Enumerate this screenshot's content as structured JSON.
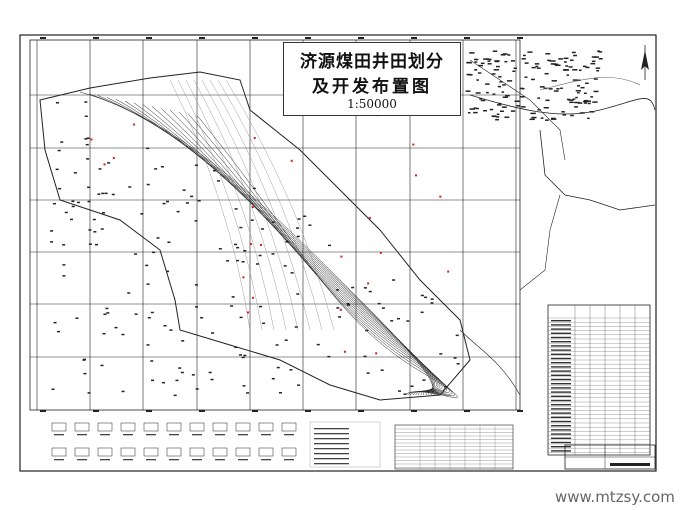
{
  "map": {
    "title_line1": "济源煤田井田划分",
    "title_line2": "及开发布置图",
    "scale": "1:50000",
    "north_arrow": "north-arrow-icon",
    "colors": {
      "lines": "#222222",
      "highlight": "#d02020",
      "background": "#ffffff"
    }
  },
  "watermark": "www.mtzsy.com"
}
